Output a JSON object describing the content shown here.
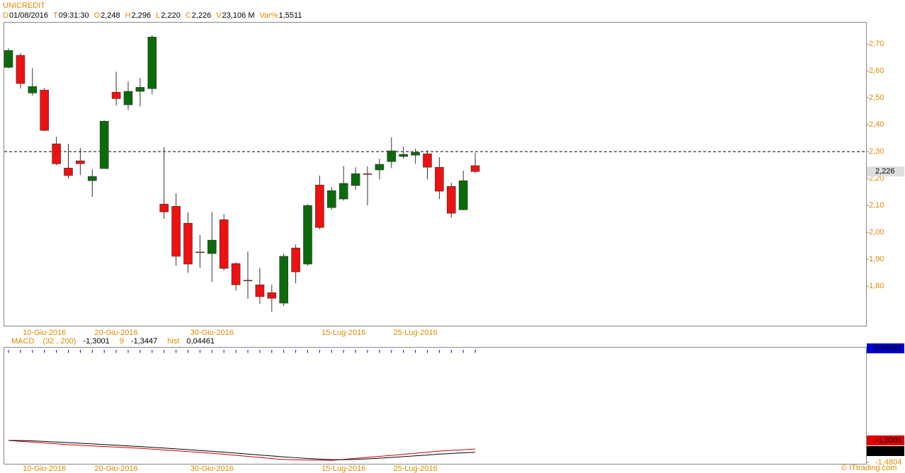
{
  "header": {
    "symbol": "UNICREDIT",
    "fields": [
      {
        "key": "D",
        "value": "01/08/2016"
      },
      {
        "key": "T",
        "value": "09:31:30"
      },
      {
        "key": "O",
        "value": "2,248"
      },
      {
        "key": "H",
        "value": "2,296"
      },
      {
        "key": "L",
        "value": "2,220"
      },
      {
        "key": "C",
        "value": "2,226"
      },
      {
        "key": "V",
        "value": "23,106 M"
      },
      {
        "key": "Var%",
        "value": "1,5511"
      }
    ]
  },
  "chart_data": [
    {
      "type": "candlestick",
      "categories": [
        null,
        null,
        null,
        "10-Giu-2016",
        null,
        null,
        null,
        null,
        null,
        "20-Giu-2016",
        null,
        null,
        null,
        null,
        null,
        null,
        null,
        "30-Giu-2016",
        null,
        null,
        null,
        null,
        null,
        null,
        null,
        null,
        null,
        null,
        "15-Lug-2016",
        null,
        null,
        null,
        null,
        null,
        "25-Lug-2016",
        null,
        null,
        null,
        null,
        null
      ],
      "open": [
        2.613,
        2.658,
        2.518,
        2.529,
        2.329,
        2.239,
        2.266,
        2.192,
        2.237,
        2.521,
        2.474,
        2.524,
        2.534,
        2.105,
        2.097,
        2.034,
        1.927,
        1.921,
        2.047,
        1.884,
        1.822,
        1.805,
        1.776,
        1.737,
        1.942,
        1.882,
        2.176,
        2.092,
        2.124,
        2.174,
        2.218,
        2.232,
        2.263,
        2.282,
        2.287,
        2.292,
        2.242,
        2.171,
        2.084,
        2.248
      ],
      "high": [
        2.684,
        2.666,
        2.61,
        2.537,
        2.355,
        2.329,
        2.313,
        2.234,
        2.416,
        2.597,
        2.561,
        2.574,
        2.732,
        2.316,
        2.145,
        2.074,
        1.99,
        2.076,
        2.068,
        1.889,
        1.929,
        1.868,
        1.805,
        1.921,
        1.955,
        2.105,
        2.211,
        2.168,
        2.247,
        2.242,
        2.245,
        2.274,
        2.353,
        2.318,
        2.311,
        2.305,
        2.279,
        2.184,
        2.229,
        2.296
      ],
      "low": [
        2.61,
        2.534,
        2.508,
        2.376,
        2.25,
        2.2,
        2.213,
        2.132,
        2.237,
        2.471,
        2.455,
        2.468,
        2.513,
        2.05,
        1.876,
        1.85,
        1.868,
        1.816,
        1.858,
        1.784,
        1.753,
        1.734,
        1.705,
        1.726,
        1.811,
        1.876,
        2.011,
        2.084,
        2.118,
        2.158,
        2.1,
        2.197,
        2.239,
        2.274,
        2.255,
        2.197,
        2.124,
        2.055,
        2.082,
        2.22
      ],
      "close": [
        2.676,
        2.553,
        2.542,
        2.379,
        2.255,
        2.211,
        2.255,
        2.208,
        2.413,
        2.497,
        2.524,
        2.539,
        2.726,
        2.076,
        1.911,
        1.882,
        1.926,
        1.971,
        1.866,
        1.805,
        1.821,
        1.761,
        1.755,
        1.911,
        1.853,
        2.1,
        2.018,
        2.155,
        2.182,
        2.218,
        2.217,
        2.253,
        2.303,
        2.29,
        2.297,
        2.242,
        2.153,
        2.071,
        2.192,
        2.226
      ],
      "up_color": "#0b6b0b",
      "down_color": "#ee1111",
      "ylim": [
        1.653,
        2.782
      ],
      "yticks": [
        {
          "value": 1.8,
          "label": "1,80"
        },
        {
          "value": 1.9,
          "label": "1,90"
        },
        {
          "value": 2.0,
          "label": "2,00"
        },
        {
          "value": 2.1,
          "label": "2,10"
        },
        {
          "value": 2.2,
          "label": "2,20"
        },
        {
          "value": 2.3,
          "label": "2,30"
        },
        {
          "value": 2.4,
          "label": "2,40"
        },
        {
          "value": 2.5,
          "label": "2,50"
        },
        {
          "value": 2.6,
          "label": "2,60"
        },
        {
          "value": 2.7,
          "label": "2,70"
        }
      ],
      "reference_line": 2.3,
      "last_price": {
        "value": 2.226,
        "label": "2,226"
      }
    },
    {
      "type": "macd",
      "title": "MACD",
      "series": [
        {
          "name": "(32 , 200)",
          "color": "#cc0000",
          "last_label": "-1,3001",
          "values": [
            -1.184,
            -1.196,
            -1.207,
            -1.219,
            -1.23,
            -1.242,
            -1.25,
            -1.258,
            -1.266,
            -1.274,
            -1.282,
            -1.29,
            -1.301,
            -1.312,
            -1.324,
            -1.335,
            -1.346,
            -1.357,
            -1.371,
            -1.386,
            -1.4,
            -1.414,
            -1.429,
            -1.443,
            -1.446,
            -1.448,
            -1.451,
            -1.453,
            -1.44,
            -1.426,
            -1.413,
            -1.4,
            -1.386,
            -1.372,
            -1.357,
            -1.343,
            -1.328,
            -1.319,
            -1.31,
            -1.3001
          ]
        },
        {
          "name": "9",
          "color": "#000000",
          "last_label": "-1,3447",
          "values": [
            -1.184,
            -1.185,
            -1.19,
            -1.197,
            -1.205,
            -1.214,
            -1.222,
            -1.231,
            -1.24,
            -1.249,
            -1.258,
            -1.267,
            -1.277,
            -1.287,
            -1.298,
            -1.309,
            -1.32,
            -1.331,
            -1.343,
            -1.355,
            -1.368,
            -1.381,
            -1.394,
            -1.407,
            -1.418,
            -1.428,
            -1.437,
            -1.444,
            -1.444,
            -1.44,
            -1.433,
            -1.424,
            -1.414,
            -1.403,
            -1.392,
            -1.381,
            -1.37,
            -1.36,
            -1.352,
            -1.3447
          ]
        },
        {
          "name": "hist",
          "color": "#0000cc",
          "last_label": "0,04461",
          "values": [
            0.04,
            0.04,
            0.04,
            0.04,
            0.04,
            0.04,
            0.04,
            0.04,
            0.04,
            0.04,
            0.04,
            0.04,
            0.04,
            0.04,
            0.04,
            0.04,
            0.04,
            0.04,
            0.04,
            0.04,
            0.04,
            0.04,
            0.04,
            0.04,
            0.04,
            0.04,
            0.04,
            0.04,
            0.04,
            0.04,
            0.04,
            0.04,
            0.04,
            0.04,
            0.04,
            0.04,
            0.04,
            0.04,
            0.04,
            0.04461
          ]
        }
      ],
      "ylim": [
        -1.5,
        0.08
      ],
      "yticks": [
        {
          "value": -1.4804,
          "label": "-1,4804"
        }
      ]
    }
  ],
  "footer": "© ITtrading.com"
}
